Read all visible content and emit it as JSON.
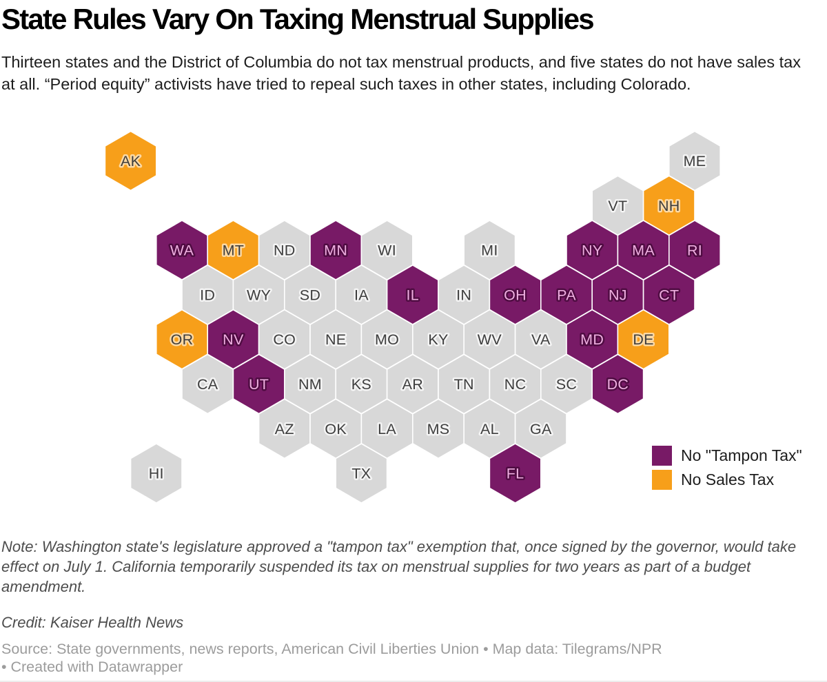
{
  "header": {
    "title": "State Rules Vary On Taxing Menstrual Supplies",
    "subtitle": "Thirteen states and the District of Columbia do not tax menstrual products, and five states do not have sales tax at all. “Period equity” activists have tried to repeal such taxes in other states, including Colorado."
  },
  "chart_data": {
    "type": "heatmap",
    "subtype": "us-hexagon-tile-map",
    "title": "State Rules Vary On Taxing Menstrual Supplies",
    "legend_position": "bottom-right",
    "legend": [
      {
        "key": "no_tampon_tax",
        "label": "No \"Tampon Tax\"",
        "color": "#781a66"
      },
      {
        "key": "no_sales_tax",
        "label": "No Sales Tax",
        "color": "#f79f1a"
      }
    ],
    "default_color": "#d8d8d8",
    "label_styles": {
      "no_tampon_tax": {
        "fill": "#efb0e1",
        "halo": "#4f0c42"
      },
      "no_sales_tax": {
        "fill": "#3d3d3d",
        "halo": "#fcd9a4"
      },
      "taxed": {
        "fill": "#3d3d3d",
        "halo": "#f4f4f4"
      }
    },
    "geometry": {
      "x0": 189.6,
      "dx": 37.2,
      "y0": 48.5,
      "dy": 64.8,
      "hex_w": 74.4,
      "hex_h": 86
    },
    "states": [
      {
        "abbr": "AK",
        "col": 0,
        "row": 0,
        "status": "no_sales_tax"
      },
      {
        "abbr": "ME",
        "col": 22,
        "row": 0,
        "status": "taxed"
      },
      {
        "abbr": "VT",
        "col": 19,
        "row": 1,
        "status": "taxed"
      },
      {
        "abbr": "NH",
        "col": 21,
        "row": 1,
        "status": "no_sales_tax"
      },
      {
        "abbr": "WA",
        "col": 2,
        "row": 2,
        "status": "no_tampon_tax"
      },
      {
        "abbr": "MT",
        "col": 4,
        "row": 2,
        "status": "no_sales_tax"
      },
      {
        "abbr": "ND",
        "col": 6,
        "row": 2,
        "status": "taxed"
      },
      {
        "abbr": "MN",
        "col": 8,
        "row": 2,
        "status": "no_tampon_tax"
      },
      {
        "abbr": "WI",
        "col": 10,
        "row": 2,
        "status": "taxed"
      },
      {
        "abbr": "MI",
        "col": 14,
        "row": 2,
        "status": "taxed"
      },
      {
        "abbr": "NY",
        "col": 18,
        "row": 2,
        "status": "no_tampon_tax"
      },
      {
        "abbr": "MA",
        "col": 20,
        "row": 2,
        "status": "no_tampon_tax"
      },
      {
        "abbr": "RI",
        "col": 22,
        "row": 2,
        "status": "no_tampon_tax"
      },
      {
        "abbr": "ID",
        "col": 3,
        "row": 3,
        "status": "taxed"
      },
      {
        "abbr": "WY",
        "col": 5,
        "row": 3,
        "status": "taxed"
      },
      {
        "abbr": "SD",
        "col": 7,
        "row": 3,
        "status": "taxed"
      },
      {
        "abbr": "IA",
        "col": 9,
        "row": 3,
        "status": "taxed"
      },
      {
        "abbr": "IL",
        "col": 11,
        "row": 3,
        "status": "no_tampon_tax"
      },
      {
        "abbr": "IN",
        "col": 13,
        "row": 3,
        "status": "taxed"
      },
      {
        "abbr": "OH",
        "col": 15,
        "row": 3,
        "status": "no_tampon_tax"
      },
      {
        "abbr": "PA",
        "col": 17,
        "row": 3,
        "status": "no_tampon_tax"
      },
      {
        "abbr": "NJ",
        "col": 19,
        "row": 3,
        "status": "no_tampon_tax"
      },
      {
        "abbr": "CT",
        "col": 21,
        "row": 3,
        "status": "no_tampon_tax"
      },
      {
        "abbr": "OR",
        "col": 2,
        "row": 4,
        "status": "no_sales_tax"
      },
      {
        "abbr": "NV",
        "col": 4,
        "row": 4,
        "status": "no_tampon_tax"
      },
      {
        "abbr": "CO",
        "col": 6,
        "row": 4,
        "status": "taxed"
      },
      {
        "abbr": "NE",
        "col": 8,
        "row": 4,
        "status": "taxed"
      },
      {
        "abbr": "MO",
        "col": 10,
        "row": 4,
        "status": "taxed"
      },
      {
        "abbr": "KY",
        "col": 12,
        "row": 4,
        "status": "taxed"
      },
      {
        "abbr": "WV",
        "col": 14,
        "row": 4,
        "status": "taxed"
      },
      {
        "abbr": "VA",
        "col": 16,
        "row": 4,
        "status": "taxed"
      },
      {
        "abbr": "MD",
        "col": 18,
        "row": 4,
        "status": "no_tampon_tax"
      },
      {
        "abbr": "DE",
        "col": 20,
        "row": 4,
        "status": "no_sales_tax"
      },
      {
        "abbr": "CA",
        "col": 3,
        "row": 5,
        "status": "taxed"
      },
      {
        "abbr": "UT",
        "col": 5,
        "row": 5,
        "status": "no_tampon_tax"
      },
      {
        "abbr": "NM",
        "col": 7,
        "row": 5,
        "status": "taxed"
      },
      {
        "abbr": "KS",
        "col": 9,
        "row": 5,
        "status": "taxed"
      },
      {
        "abbr": "AR",
        "col": 11,
        "row": 5,
        "status": "taxed"
      },
      {
        "abbr": "TN",
        "col": 13,
        "row": 5,
        "status": "taxed"
      },
      {
        "abbr": "NC",
        "col": 15,
        "row": 5,
        "status": "taxed"
      },
      {
        "abbr": "SC",
        "col": 17,
        "row": 5,
        "status": "taxed"
      },
      {
        "abbr": "DC",
        "col": 19,
        "row": 5,
        "status": "no_tampon_tax"
      },
      {
        "abbr": "AZ",
        "col": 6,
        "row": 6,
        "status": "taxed"
      },
      {
        "abbr": "OK",
        "col": 8,
        "row": 6,
        "status": "taxed"
      },
      {
        "abbr": "LA",
        "col": 10,
        "row": 6,
        "status": "taxed"
      },
      {
        "abbr": "MS",
        "col": 12,
        "row": 6,
        "status": "taxed"
      },
      {
        "abbr": "AL",
        "col": 14,
        "row": 6,
        "status": "taxed"
      },
      {
        "abbr": "GA",
        "col": 16,
        "row": 6,
        "status": "taxed"
      },
      {
        "abbr": "HI",
        "col": 1,
        "row": 7,
        "status": "taxed"
      },
      {
        "abbr": "TX",
        "col": 9,
        "row": 7,
        "status": "taxed"
      },
      {
        "abbr": "FL",
        "col": 15,
        "row": 7,
        "status": "no_tampon_tax"
      }
    ]
  },
  "footer": {
    "note": "Note: Washington state's legislature approved a \"tampon tax\" exemption that, once signed by the governor, would take effect on July 1. California temporarily suspended its tax on menstrual supplies for two years as part of a budget amendment.",
    "credit": "Credit: Kaiser Health News",
    "source_line1": "Source: State governments, news reports, American Civil Liberties Union • Map data: Tilegrams/NPR",
    "source_line2": "• Created with Datawrapper"
  }
}
